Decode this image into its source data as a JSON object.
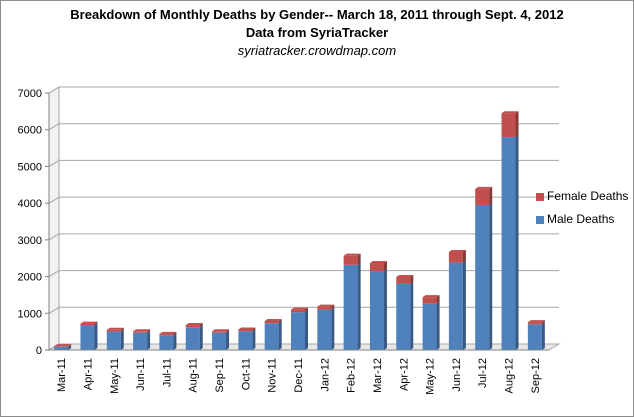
{
  "chart_data": {
    "type": "bar",
    "stacked": true,
    "title": "Breakdown of Monthly Deaths by Gender-- March 18, 2011 through Sept. 4, 2012",
    "subtitle": "Data from SyriaTracker",
    "source": "syriatracker.crowdmap.com",
    "categories": [
      "Mar-11",
      "Apr-11",
      "May-11",
      "Jun-11",
      "Jul-11",
      "Aug-11",
      "Sep-11",
      "Oct-11",
      "Nov-11",
      "Dec-11",
      "Jan-12",
      "Feb-12",
      "Mar-12",
      "Apr-12",
      "May-12",
      "Jun-12",
      "Jul-12",
      "Aug-12",
      "Sep-12"
    ],
    "series": [
      {
        "name": "Male Deaths",
        "color": "#4f81bd",
        "values": [
          90,
          680,
          500,
          470,
          400,
          620,
          470,
          510,
          730,
          1030,
          1100,
          2320,
          2150,
          1800,
          1260,
          2380,
          3950,
          5800,
          700
        ]
      },
      {
        "name": "Female Deaths",
        "color": "#c0504d",
        "values": [
          15,
          40,
          50,
          40,
          40,
          60,
          40,
          50,
          60,
          70,
          80,
          250,
          220,
          190,
          180,
          290,
          440,
          650,
          60
        ]
      }
    ],
    "ylim": [
      0,
      7000
    ],
    "yticks": [
      "0",
      "1000",
      "2000",
      "3000",
      "4000",
      "5000",
      "6000",
      "7000"
    ],
    "grid": true,
    "legend": "right"
  }
}
